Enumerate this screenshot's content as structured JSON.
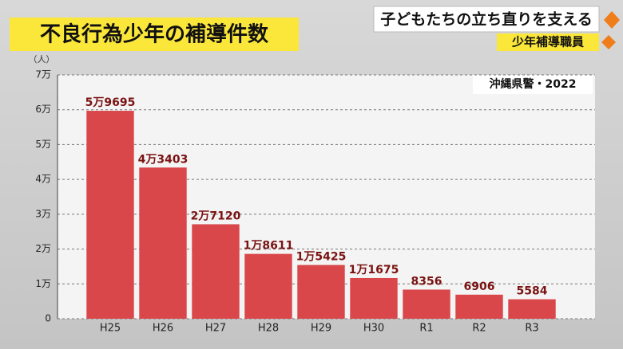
{
  "header": {
    "headline": "子どもたちの立ち直りを支える",
    "topic": "少年補導職員"
  },
  "chart_data": {
    "type": "bar",
    "title": "不良行為少年の補導件数",
    "y_unit": "（人）",
    "annotation": "沖縄県警・2022",
    "categories": [
      "H25",
      "H26",
      "H27",
      "H28",
      "H29",
      "H30",
      "R1",
      "R2",
      "R3"
    ],
    "values": [
      59695,
      43403,
      27120,
      18611,
      15425,
      11675,
      8356,
      6906,
      5584
    ],
    "value_labels": [
      "5万9695",
      "4万3403",
      "2万7120",
      "1万8611",
      "1万5425",
      "1万1675",
      "8356",
      "6906",
      "5584"
    ],
    "color": "#d9474a",
    "ylim": [
      0,
      70000
    ],
    "yticks": [
      0,
      {
        "value": 10000,
        "label": "1万"
      },
      {
        "value": 20000,
        "label": "2万"
      },
      {
        "value": 30000,
        "label": "3万"
      },
      {
        "value": 40000,
        "label": "4万"
      },
      {
        "value": 50000,
        "label": "5万"
      },
      {
        "value": 60000,
        "label": "6万"
      },
      {
        "value": 70000,
        "label": "7万"
      }
    ],
    "grid": true
  }
}
